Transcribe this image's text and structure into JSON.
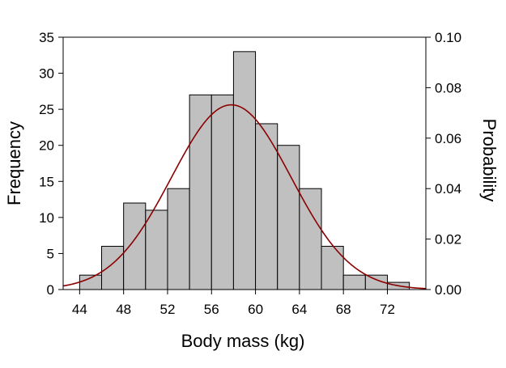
{
  "chart_data": {
    "type": "bar",
    "title": "",
    "xlabel": "Body mass (kg)",
    "ylabel": "Frequency",
    "y2label": "Probability",
    "xlim": [
      42.5,
      75.5
    ],
    "ylim": [
      0,
      35
    ],
    "y2lim": [
      0,
      0.1
    ],
    "x_ticks": [
      44,
      48,
      52,
      56,
      60,
      64,
      68,
      72
    ],
    "x_tick_labels": [
      "44",
      "48",
      "52",
      "56",
      "60",
      "64",
      "68",
      "72"
    ],
    "y_ticks": [
      0,
      5,
      10,
      15,
      20,
      25,
      30,
      35
    ],
    "y_tick_labels": [
      "0",
      "5",
      "10",
      "15",
      "20",
      "25",
      "30",
      "35"
    ],
    "y2_ticks": [
      0,
      0.02,
      0.04,
      0.06,
      0.08,
      0.1
    ],
    "y2_tick_labels": [
      "0.00",
      "0.02",
      "0.04",
      "0.06",
      "0.08",
      "0.10"
    ],
    "grid": false,
    "bin_width": 2,
    "bin_starts": [
      44,
      46,
      48,
      50,
      52,
      54,
      56,
      58,
      60,
      62,
      64,
      66,
      68,
      70,
      72
    ],
    "values": [
      2,
      6,
      12,
      11,
      14,
      27,
      27,
      33,
      23,
      20,
      14,
      6,
      2,
      2,
      1
    ],
    "series": [
      {
        "name": "Frequency",
        "kind": "histogram",
        "values": [
          2,
          6,
          12,
          11,
          14,
          27,
          27,
          33,
          23,
          20,
          14,
          6,
          2,
          2,
          1
        ]
      },
      {
        "name": "Probability",
        "kind": "normal-density",
        "axis": "right",
        "mean": 57.8,
        "sd": 5.45
      }
    ],
    "colors": {
      "bar_fill": "#c0c0c0",
      "bar_stroke": "#000000",
      "curve": "#8b0000"
    }
  }
}
